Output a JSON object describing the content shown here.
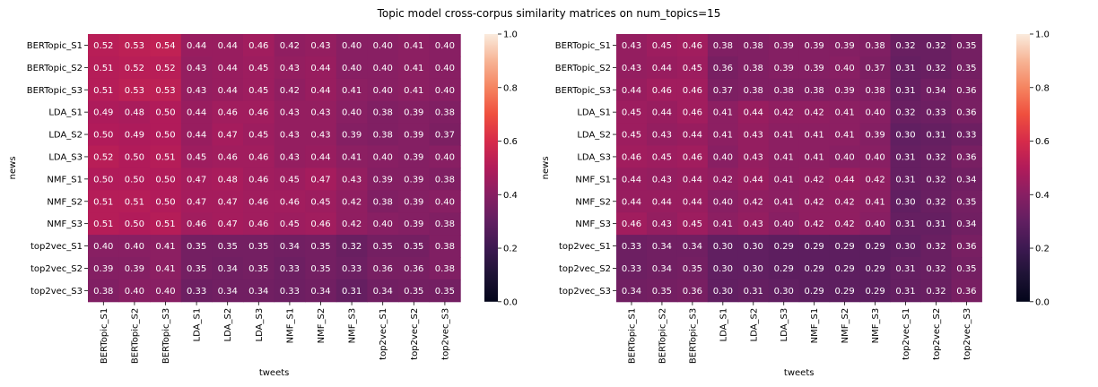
{
  "chart_data": {
    "title": "Topic model cross-corpus similarity matrices on  num_topics=15",
    "panels": [
      {
        "type": "heatmap",
        "xlabel": "tweets",
        "ylabel": "news",
        "x_categories": [
          "BERTopic_S1",
          "BERTopic_S2",
          "BERTopic_S3",
          "LDA_S1",
          "LDA_S2",
          "LDA_S3",
          "NMF_S1",
          "NMF_S2",
          "NMF_S3",
          "top2vec_S1",
          "top2vec_S2",
          "top2vec_S3"
        ],
        "y_categories": [
          "BERTopic_S1",
          "BERTopic_S2",
          "BERTopic_S3",
          "LDA_S1",
          "LDA_S2",
          "LDA_S3",
          "NMF_S1",
          "NMF_S2",
          "NMF_S3",
          "top2vec_S1",
          "top2vec_S2",
          "top2vec_S3"
        ],
        "vmin": 0.0,
        "vmax": 1.0,
        "colorbar_ticks": [
          "0.0",
          "0.2",
          "0.4",
          "0.6",
          "0.8",
          "1.0"
        ],
        "values": [
          [
            "0.52",
            "0.53",
            "0.54",
            "0.44",
            "0.44",
            "0.46",
            "0.42",
            "0.43",
            "0.40",
            "0.40",
            "0.41",
            "0.40"
          ],
          [
            "0.51",
            "0.52",
            "0.52",
            "0.43",
            "0.44",
            "0.45",
            "0.43",
            "0.44",
            "0.40",
            "0.40",
            "0.41",
            "0.40"
          ],
          [
            "0.51",
            "0.53",
            "0.53",
            "0.43",
            "0.44",
            "0.45",
            "0.42",
            "0.44",
            "0.41",
            "0.40",
            "0.41",
            "0.40"
          ],
          [
            "0.49",
            "0.48",
            "0.50",
            "0.44",
            "0.46",
            "0.46",
            "0.43",
            "0.43",
            "0.40",
            "0.38",
            "0.39",
            "0.38"
          ],
          [
            "0.50",
            "0.49",
            "0.50",
            "0.44",
            "0.47",
            "0.45",
            "0.43",
            "0.43",
            "0.39",
            "0.38",
            "0.39",
            "0.37"
          ],
          [
            "0.52",
            "0.50",
            "0.51",
            "0.45",
            "0.46",
            "0.46",
            "0.43",
            "0.44",
            "0.41",
            "0.40",
            "0.39",
            "0.40"
          ],
          [
            "0.50",
            "0.50",
            "0.50",
            "0.47",
            "0.48",
            "0.46",
            "0.45",
            "0.47",
            "0.43",
            "0.39",
            "0.39",
            "0.38"
          ],
          [
            "0.51",
            "0.51",
            "0.50",
            "0.47",
            "0.47",
            "0.46",
            "0.46",
            "0.45",
            "0.42",
            "0.38",
            "0.39",
            "0.40"
          ],
          [
            "0.51",
            "0.50",
            "0.51",
            "0.46",
            "0.47",
            "0.46",
            "0.45",
            "0.46",
            "0.42",
            "0.40",
            "0.39",
            "0.38"
          ],
          [
            "0.40",
            "0.40",
            "0.41",
            "0.35",
            "0.35",
            "0.35",
            "0.34",
            "0.35",
            "0.32",
            "0.35",
            "0.35",
            "0.38"
          ],
          [
            "0.39",
            "0.39",
            "0.41",
            "0.35",
            "0.34",
            "0.35",
            "0.33",
            "0.35",
            "0.33",
            "0.36",
            "0.36",
            "0.38"
          ],
          [
            "0.38",
            "0.40",
            "0.40",
            "0.33",
            "0.34",
            "0.34",
            "0.33",
            "0.34",
            "0.31",
            "0.34",
            "0.35",
            "0.35"
          ]
        ]
      },
      {
        "type": "heatmap",
        "xlabel": "tweets",
        "ylabel": "news",
        "x_categories": [
          "BERTopic_S1",
          "BERTopic_S2",
          "BERTopic_S3",
          "LDA_S1",
          "LDA_S2",
          "LDA_S3",
          "NMF_S1",
          "NMF_S2",
          "NMF_S3",
          "top2vec_S1",
          "top2vec_S2",
          "top2vec_S3"
        ],
        "y_categories": [
          "BERTopic_S1",
          "BERTopic_S2",
          "BERTopic_S3",
          "LDA_S1",
          "LDA_S2",
          "LDA_S3",
          "NMF_S1",
          "NMF_S2",
          "NMF_S3",
          "top2vec_S1",
          "top2vec_S2",
          "top2vec_S3"
        ],
        "vmin": 0.0,
        "vmax": 1.0,
        "colorbar_ticks": [
          "0.0",
          "0.2",
          "0.4",
          "0.6",
          "0.8",
          "1.0"
        ],
        "values": [
          [
            "0.43",
            "0.45",
            "0.46",
            "0.38",
            "0.38",
            "0.39",
            "0.39",
            "0.39",
            "0.38",
            "0.32",
            "0.32",
            "0.35"
          ],
          [
            "0.43",
            "0.44",
            "0.45",
            "0.36",
            "0.38",
            "0.39",
            "0.39",
            "0.40",
            "0.37",
            "0.31",
            "0.32",
            "0.35"
          ],
          [
            "0.44",
            "0.46",
            "0.46",
            "0.37",
            "0.38",
            "0.38",
            "0.38",
            "0.39",
            "0.38",
            "0.31",
            "0.34",
            "0.36"
          ],
          [
            "0.45",
            "0.44",
            "0.46",
            "0.41",
            "0.44",
            "0.42",
            "0.42",
            "0.41",
            "0.40",
            "0.32",
            "0.33",
            "0.36"
          ],
          [
            "0.45",
            "0.43",
            "0.44",
            "0.41",
            "0.43",
            "0.41",
            "0.41",
            "0.41",
            "0.39",
            "0.30",
            "0.31",
            "0.33"
          ],
          [
            "0.46",
            "0.45",
            "0.46",
            "0.40",
            "0.43",
            "0.41",
            "0.41",
            "0.40",
            "0.40",
            "0.31",
            "0.32",
            "0.36"
          ],
          [
            "0.44",
            "0.43",
            "0.44",
            "0.42",
            "0.44",
            "0.41",
            "0.42",
            "0.44",
            "0.42",
            "0.31",
            "0.32",
            "0.34"
          ],
          [
            "0.44",
            "0.44",
            "0.44",
            "0.40",
            "0.42",
            "0.41",
            "0.42",
            "0.42",
            "0.41",
            "0.30",
            "0.32",
            "0.35"
          ],
          [
            "0.46",
            "0.43",
            "0.45",
            "0.41",
            "0.43",
            "0.40",
            "0.42",
            "0.42",
            "0.40",
            "0.31",
            "0.31",
            "0.34"
          ],
          [
            "0.33",
            "0.34",
            "0.34",
            "0.30",
            "0.30",
            "0.29",
            "0.29",
            "0.29",
            "0.29",
            "0.30",
            "0.32",
            "0.36"
          ],
          [
            "0.33",
            "0.34",
            "0.35",
            "0.30",
            "0.30",
            "0.29",
            "0.29",
            "0.29",
            "0.29",
            "0.31",
            "0.32",
            "0.35"
          ],
          [
            "0.34",
            "0.35",
            "0.36",
            "0.30",
            "0.31",
            "0.30",
            "0.29",
            "0.29",
            "0.29",
            "0.31",
            "0.32",
            "0.36"
          ]
        ]
      }
    ]
  }
}
